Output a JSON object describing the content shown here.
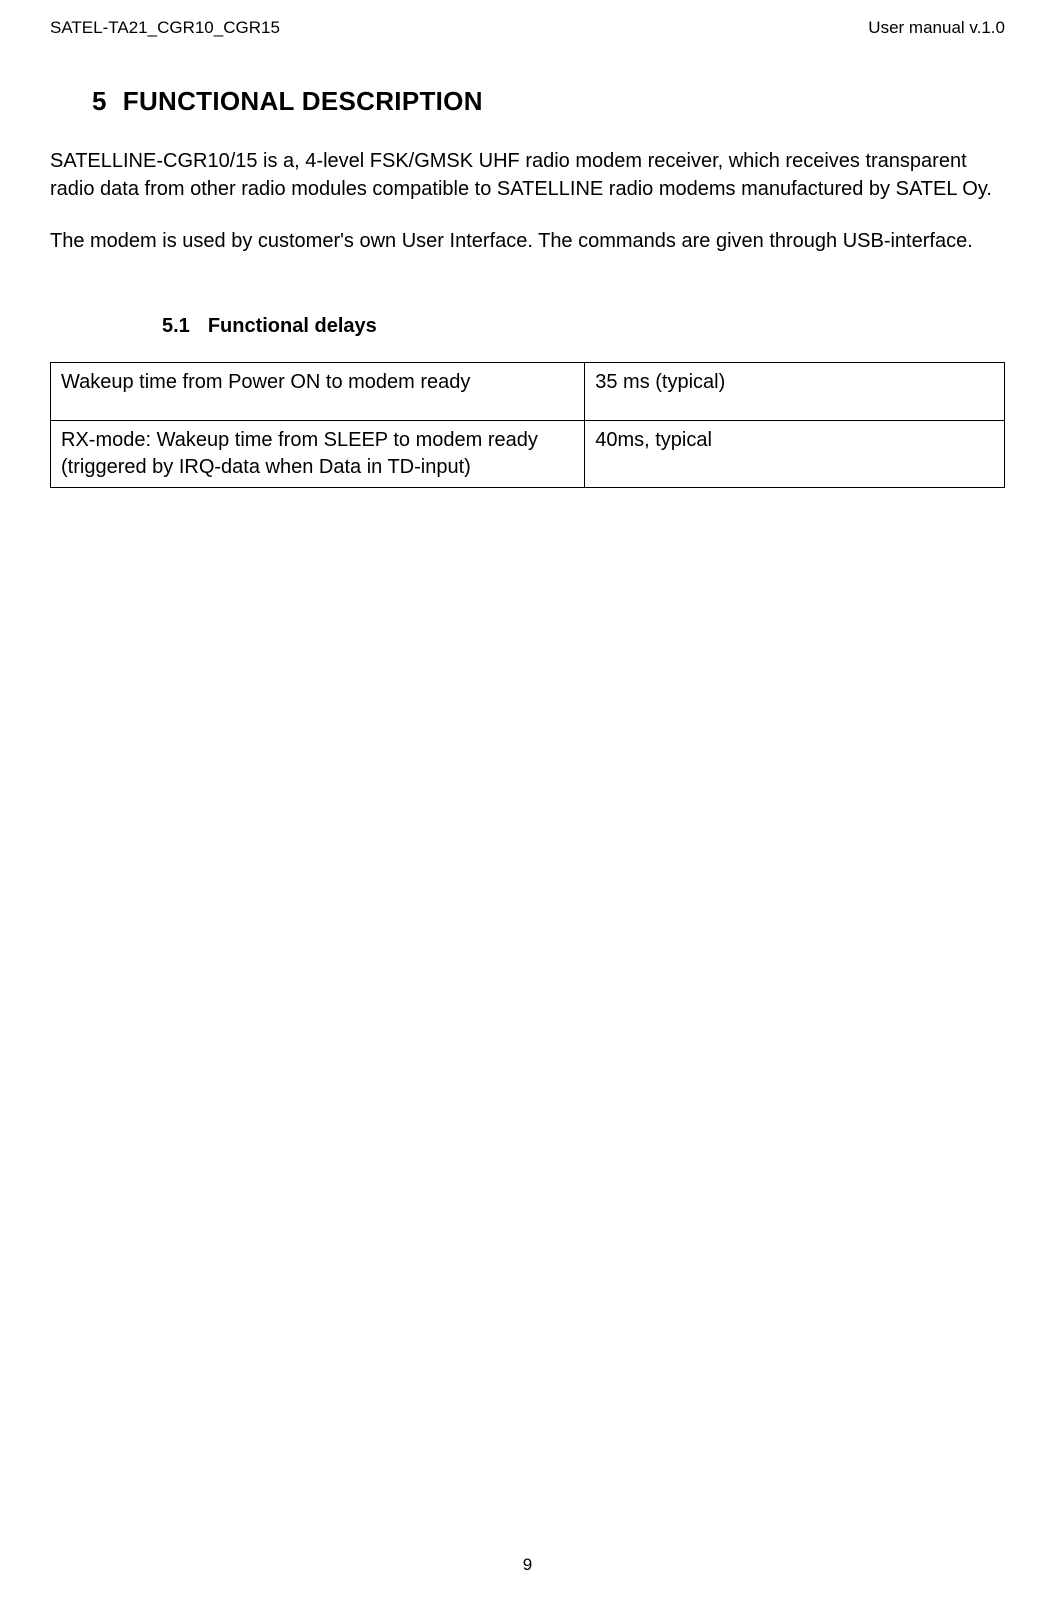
{
  "header": {
    "left": "SATEL-TA21_CGR10_CGR15",
    "right": "User manual v.1.0"
  },
  "section": {
    "number": "5",
    "title": "FUNCTIONAL DESCRIPTION"
  },
  "paragraphs": {
    "p1": "SATELLINE-CGR10/15 is a, 4-level FSK/GMSK UHF radio modem receiver, which receives transparent radio data from other radio modules compatible to SATELLINE radio modems manufactured by SATEL Oy.",
    "p2": "The modem is used by customer's own User Interface. The commands are given through USB-interface."
  },
  "subsection": {
    "number": "5.1",
    "title": "Functional delays"
  },
  "table": {
    "rows": [
      {
        "c1": "Wakeup time from Power ON to  modem ready",
        "c2": "35 ms (typical)"
      },
      {
        "c1": "RX-mode:  Wakeup time from SLEEP to  modem ready (triggered by IRQ-data when Data in TD-input)",
        "c2": "40ms, typical"
      }
    ]
  },
  "page_number": "9"
}
